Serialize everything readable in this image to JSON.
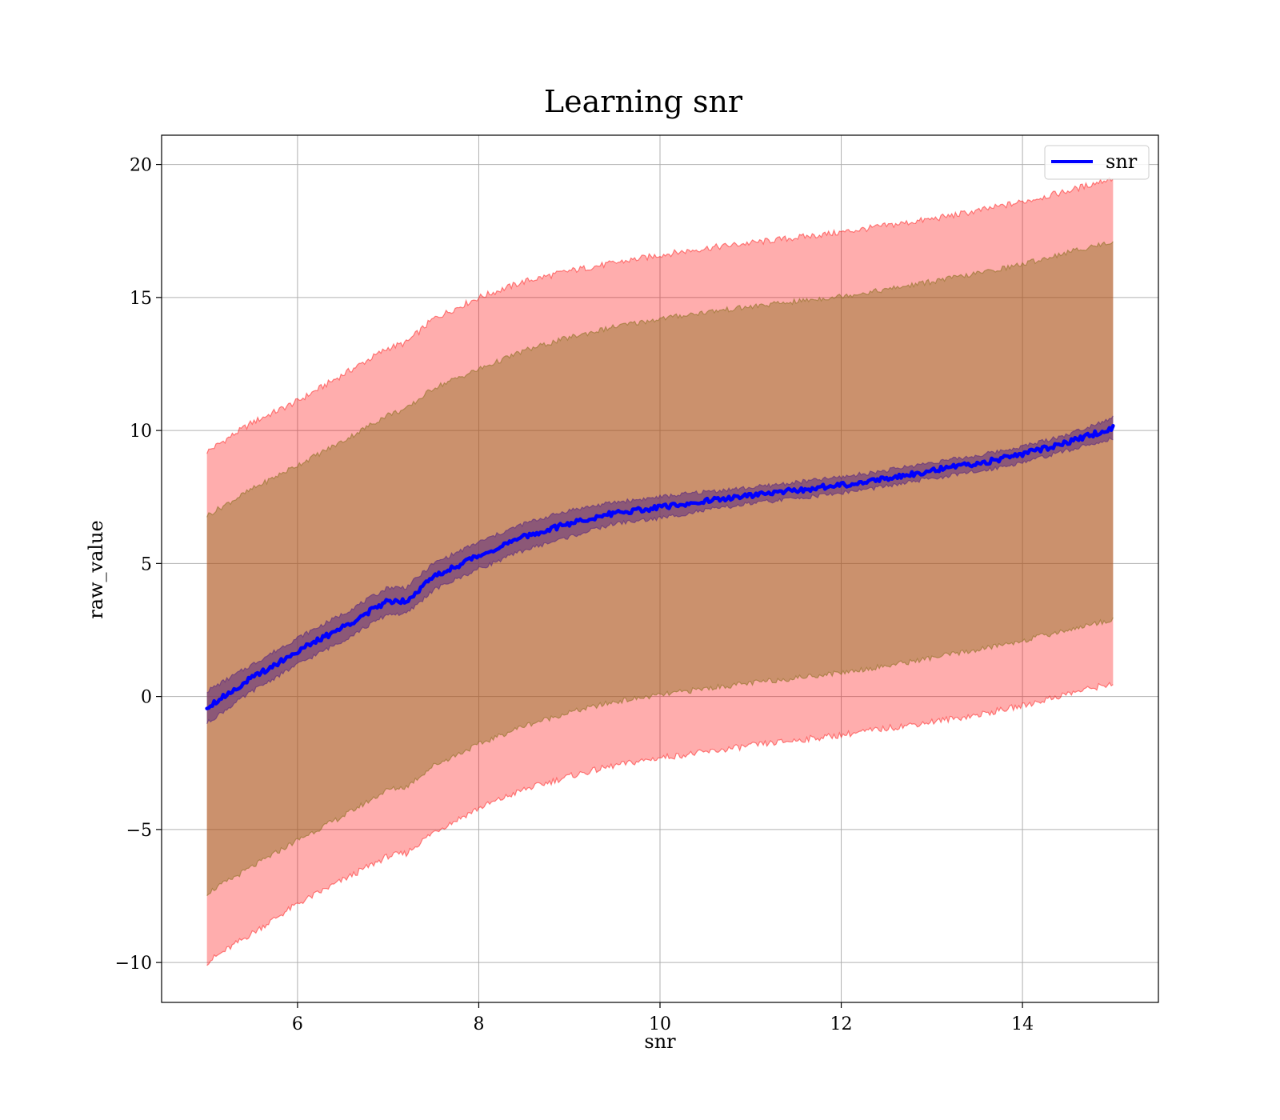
{
  "chart_data": {
    "type": "line",
    "title": "Learning snr",
    "xlabel": "snr",
    "ylabel": "raw_value",
    "xlim": [
      4.5,
      15.5
    ],
    "ylim": [
      -11.5,
      21.1
    ],
    "x_ticks": [
      6,
      8,
      10,
      12,
      14
    ],
    "x_tick_labels": [
      "6",
      "8",
      "10",
      "12",
      "14"
    ],
    "y_ticks": [
      -10,
      -5,
      0,
      5,
      10,
      15,
      20
    ],
    "y_tick_labels": [
      "−10",
      "−5",
      "0",
      "5",
      "10",
      "15",
      "20"
    ],
    "grid": true,
    "legend": {
      "position": "top-right",
      "entries": [
        "snr"
      ]
    },
    "colors": {
      "line": "#0000ff",
      "outer_band": "#ff0000",
      "middle_band": "#8b6f1f",
      "inner_band": "#5a2a80"
    },
    "x": [
      5.0,
      5.5,
      6.0,
      6.5,
      7.0,
      7.2,
      7.5,
      8.0,
      8.5,
      9.0,
      9.5,
      10.0,
      10.5,
      11.0,
      11.5,
      12.0,
      12.5,
      13.0,
      13.5,
      14.0,
      14.5,
      15.0
    ],
    "series": [
      {
        "name": "snr",
        "values": [
          -0.4,
          0.7,
          1.7,
          2.6,
          3.6,
          3.6,
          4.5,
          5.3,
          6.0,
          6.5,
          6.9,
          7.1,
          7.35,
          7.55,
          7.75,
          7.95,
          8.2,
          8.5,
          8.75,
          9.1,
          9.55,
          10.1
        ]
      }
    ],
    "bands": [
      {
        "level": "outer",
        "upper": [
          9.2,
          10.3,
          11.1,
          12.1,
          13.1,
          13.3,
          14.2,
          15.0,
          15.6,
          16.0,
          16.3,
          16.6,
          16.85,
          17.05,
          17.25,
          17.45,
          17.7,
          17.95,
          18.25,
          18.6,
          19.0,
          19.5
        ],
        "lower": [
          -10.0,
          -8.9,
          -7.8,
          -6.9,
          -6.0,
          -5.9,
          -5.1,
          -4.2,
          -3.5,
          -3.0,
          -2.6,
          -2.3,
          -2.1,
          -1.85,
          -1.65,
          -1.45,
          -1.2,
          -0.95,
          -0.7,
          -0.35,
          0.1,
          0.5
        ]
      },
      {
        "level": "middle",
        "upper": [
          6.8,
          7.8,
          8.7,
          9.6,
          10.6,
          10.8,
          11.6,
          12.3,
          13.0,
          13.5,
          13.9,
          14.2,
          14.45,
          14.65,
          14.85,
          15.05,
          15.3,
          15.6,
          15.9,
          16.25,
          16.7,
          17.1
        ],
        "lower": [
          -7.4,
          -6.4,
          -5.4,
          -4.5,
          -3.5,
          -3.4,
          -2.6,
          -1.8,
          -1.1,
          -0.6,
          -0.2,
          0.05,
          0.3,
          0.5,
          0.7,
          0.9,
          1.15,
          1.45,
          1.75,
          2.1,
          2.5,
          2.9
        ]
      },
      {
        "level": "inner",
        "upper": [
          0.2,
          1.2,
          2.2,
          3.1,
          4.1,
          4.1,
          5.0,
          5.8,
          6.5,
          7.0,
          7.3,
          7.5,
          7.7,
          7.85,
          8.05,
          8.25,
          8.5,
          8.8,
          9.05,
          9.4,
          9.85,
          10.5
        ],
        "lower": [
          -1.0,
          0.2,
          1.2,
          2.1,
          3.1,
          3.1,
          4.0,
          4.8,
          5.5,
          6.0,
          6.5,
          6.7,
          7.0,
          7.25,
          7.45,
          7.65,
          7.9,
          8.2,
          8.45,
          8.8,
          9.25,
          9.7
        ]
      }
    ]
  }
}
